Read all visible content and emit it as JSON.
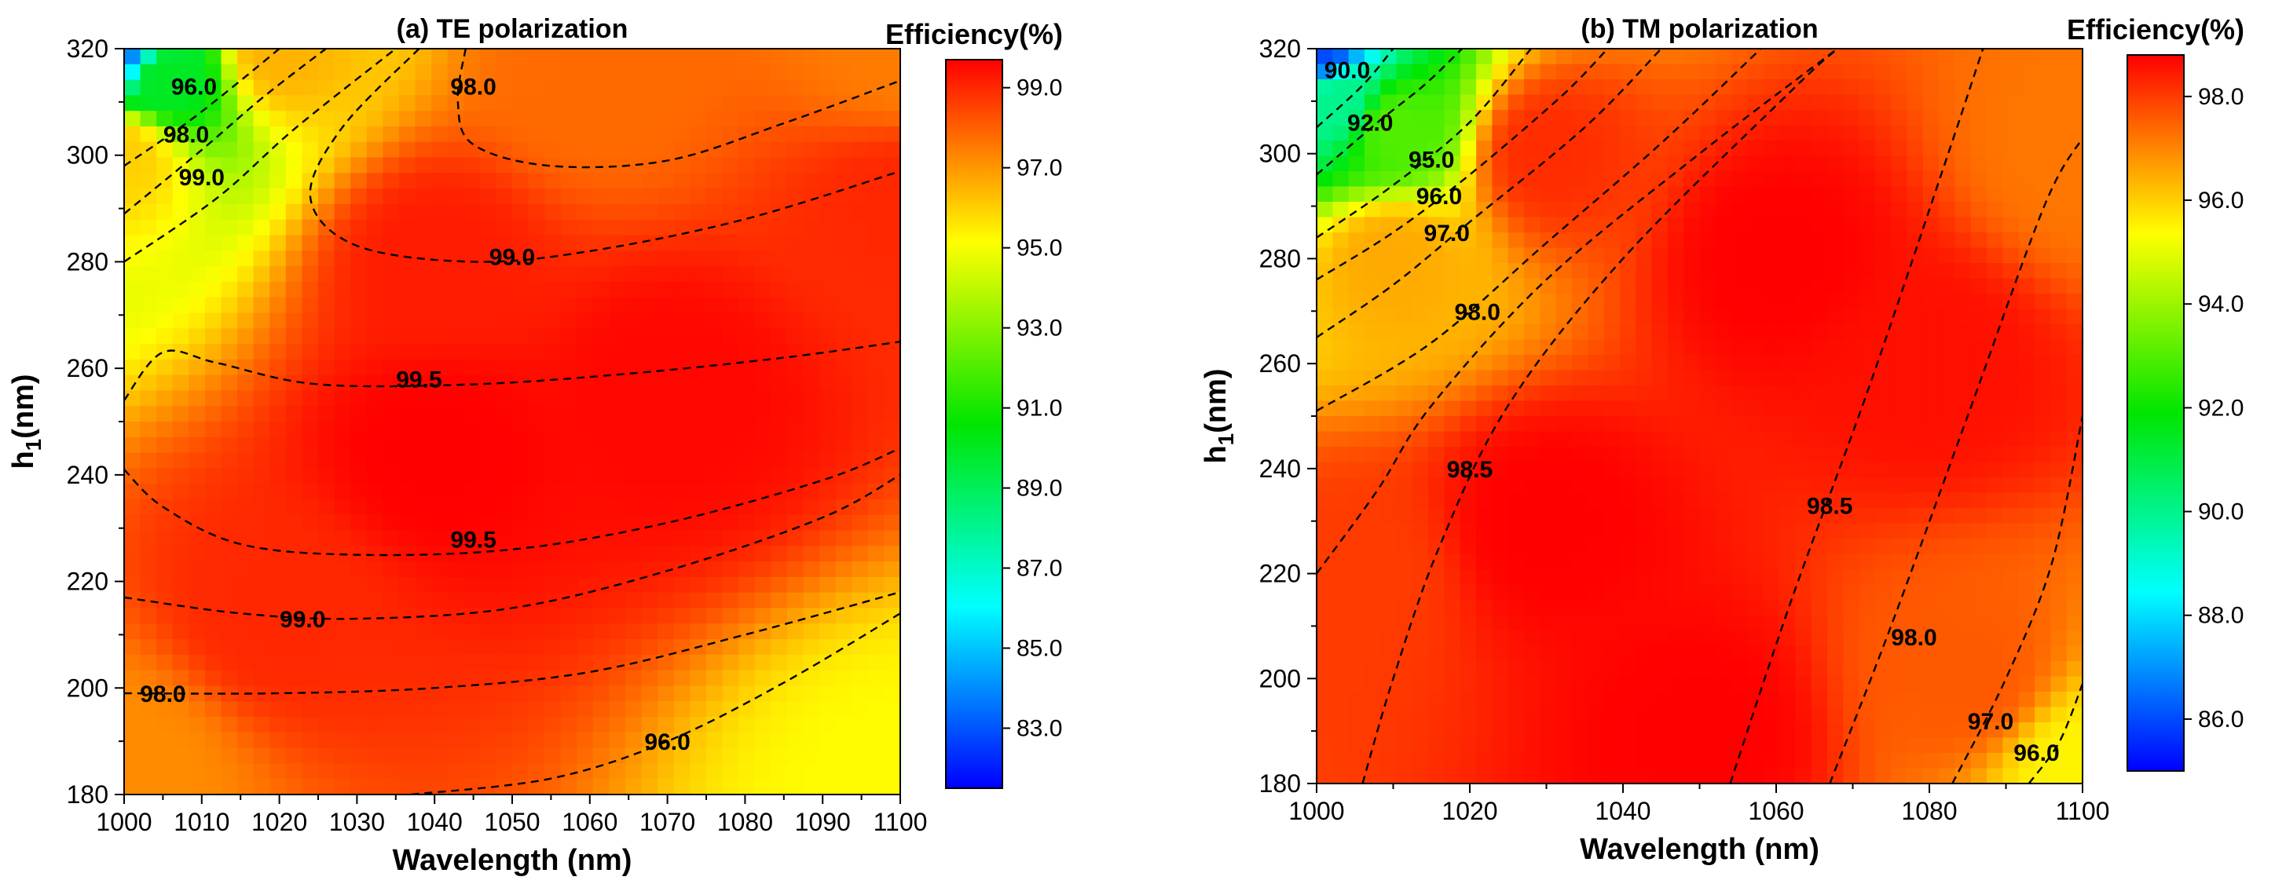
{
  "chart_data": [
    {
      "type": "heatmap",
      "title": "(a) TE polarization",
      "xlabel": "Wavelength (nm)",
      "ylabel": "h1(nm)",
      "ylabel_main": "h",
      "ylabel_sub": "1",
      "ylabel_tail": "(nm)",
      "xlim": [
        1000,
        1100
      ],
      "ylim": [
        180,
        320
      ],
      "x_ticks": [
        "1000",
        "1010",
        "1020",
        "1030",
        "1040",
        "1050",
        "1060",
        "1070",
        "1080",
        "1090",
        "1100"
      ],
      "y_ticks": [
        "180",
        "200",
        "220",
        "240",
        "260",
        "280",
        "300",
        "320"
      ],
      "colorbar": {
        "title": "Efficiency(%)",
        "range": [
          81.5,
          99.7
        ],
        "ticks": [
          "83.0",
          "85.0",
          "87.0",
          "89.0",
          "91.0",
          "93.0",
          "95.0",
          "97.0",
          "99.0"
        ]
      },
      "field_anchors": [
        {
          "x": 1000,
          "y": 320,
          "v": 84.0
        },
        {
          "x": 1005,
          "y": 315,
          "v": 90.0
        },
        {
          "x": 1000,
          "y": 300,
          "v": 96.0
        },
        {
          "x": 1020,
          "y": 320,
          "v": 96.5
        },
        {
          "x": 1060,
          "y": 315,
          "v": 97.8
        },
        {
          "x": 1040,
          "y": 280,
          "v": 99.2
        },
        {
          "x": 1040,
          "y": 245,
          "v": 99.7
        },
        {
          "x": 1070,
          "y": 255,
          "v": 99.6
        },
        {
          "x": 1020,
          "y": 215,
          "v": 99.0
        },
        {
          "x": 1000,
          "y": 185,
          "v": 97.2
        },
        {
          "x": 1100,
          "y": 180,
          "v": 95.2
        },
        {
          "x": 1100,
          "y": 290,
          "v": 99.0
        },
        {
          "x": 1100,
          "y": 320,
          "v": 97.5
        }
      ],
      "contours": [
        {
          "label": "96.0",
          "points": [
            [
              1000,
              298
            ],
            [
              1008,
              306
            ],
            [
              1015,
              314
            ],
            [
              1020,
              320
            ]
          ],
          "label_at": [
            1009,
            313
          ]
        },
        {
          "label": "98.0",
          "points": [
            [
              1000,
              289
            ],
            [
              1010,
              301
            ],
            [
              1018,
              311
            ],
            [
              1026,
              320
            ]
          ],
          "label_at": [
            1008,
            304
          ]
        },
        {
          "label": "99.0",
          "points": [
            [
              1000,
              280
            ],
            [
              1012,
              292
            ],
            [
              1022,
              305
            ],
            [
              1035,
              320
            ]
          ],
          "label_at": [
            1010,
            296
          ]
        },
        {
          "label": "98.0",
          "points": [
            [
              1044,
              320
            ],
            [
              1043,
              310
            ],
            [
              1045,
              302
            ],
            [
              1055,
              298
            ],
            [
              1070,
              299
            ],
            [
              1085,
              306
            ],
            [
              1100,
              314
            ]
          ],
          "label_at": [
            1045,
            313
          ]
        },
        {
          "label": "99.0",
          "points": [
            [
              1038,
              320
            ],
            [
              1028,
              305
            ],
            [
              1024,
              292
            ],
            [
              1030,
              283
            ],
            [
              1045,
              280
            ],
            [
              1060,
              282
            ],
            [
              1080,
              288
            ],
            [
              1100,
              297
            ]
          ],
          "label_at": [
            1050,
            281
          ]
        },
        {
          "label": "99.5",
          "points": [
            [
              1000,
              254
            ],
            [
              1005,
              263
            ],
            [
              1012,
              261
            ],
            [
              1025,
              257
            ],
            [
              1045,
              257
            ],
            [
              1065,
              259
            ],
            [
              1085,
              262
            ],
            [
              1100,
              265
            ]
          ],
          "label_at": [
            1038,
            258
          ]
        },
        {
          "label": "99.5",
          "points": [
            [
              1000,
              241
            ],
            [
              1005,
              234
            ],
            [
              1015,
              227
            ],
            [
              1030,
              225
            ],
            [
              1050,
              226
            ],
            [
              1070,
              231
            ],
            [
              1090,
              239
            ],
            [
              1100,
              245
            ]
          ],
          "label_at": [
            1045,
            228
          ]
        },
        {
          "label": "99.0",
          "points": [
            [
              1000,
              217
            ],
            [
              1015,
              214
            ],
            [
              1030,
              213
            ],
            [
              1050,
              215
            ],
            [
              1070,
              222
            ],
            [
              1090,
              232
            ],
            [
              1100,
              240
            ]
          ],
          "label_at": [
            1023,
            213
          ]
        },
        {
          "label": "98.0",
          "points": [
            [
              1000,
              199
            ],
            [
              1020,
              199
            ],
            [
              1040,
              200
            ],
            [
              1060,
              203
            ],
            [
              1080,
              210
            ],
            [
              1100,
              218
            ]
          ],
          "label_at": [
            1005,
            199
          ]
        },
        {
          "label": "96.0",
          "points": [
            [
              1037,
              180
            ],
            [
              1055,
              183
            ],
            [
              1070,
              190
            ],
            [
              1085,
              201
            ],
            [
              1100,
              214
            ]
          ],
          "label_at": [
            1070,
            190
          ]
        }
      ]
    },
    {
      "type": "heatmap",
      "title": "(b) TM polarization",
      "xlabel": "Wavelength (nm)",
      "ylabel": "h1(nm)",
      "ylabel_main": "h",
      "ylabel_sub": "1",
      "ylabel_tail": "(nm)",
      "xlim": [
        1000,
        1100
      ],
      "ylim": [
        180,
        320
      ],
      "x_ticks": [
        "1000",
        "1020",
        "1040",
        "1060",
        "1080",
        "1100"
      ],
      "y_ticks": [
        "180",
        "200",
        "220",
        "240",
        "260",
        "280",
        "300",
        "320"
      ],
      "colorbar": {
        "title": "Efficiency(%)",
        "range": [
          85.0,
          98.8
        ],
        "ticks": [
          "86.0",
          "88.0",
          "90.0",
          "92.0",
          "94.0",
          "96.0",
          "98.0"
        ]
      },
      "field_anchors": [
        {
          "x": 1000,
          "y": 320,
          "v": 86.0
        },
        {
          "x": 1003,
          "y": 310,
          "v": 90.0
        },
        {
          "x": 1010,
          "y": 305,
          "v": 93.0
        },
        {
          "x": 1010,
          "y": 280,
          "v": 96.5
        },
        {
          "x": 1030,
          "y": 300,
          "v": 98.2
        },
        {
          "x": 1005,
          "y": 220,
          "v": 98.0
        },
        {
          "x": 1030,
          "y": 230,
          "v": 98.8
        },
        {
          "x": 1060,
          "y": 280,
          "v": 98.8
        },
        {
          "x": 1050,
          "y": 190,
          "v": 98.8
        },
        {
          "x": 1080,
          "y": 260,
          "v": 98.6
        },
        {
          "x": 1085,
          "y": 200,
          "v": 97.6
        },
        {
          "x": 1100,
          "y": 182,
          "v": 95.5
        },
        {
          "x": 1100,
          "y": 300,
          "v": 97.2
        }
      ],
      "contours": [
        {
          "label": "90.0",
          "points": [
            [
              1000,
              305
            ],
            [
              1006,
              313
            ],
            [
              1010,
              320
            ]
          ],
          "label_at": [
            1004,
            316
          ]
        },
        {
          "label": "92.0",
          "points": [
            [
              1000,
              296
            ],
            [
              1008,
              306
            ],
            [
              1014,
              313
            ],
            [
              1019,
              320
            ]
          ],
          "label_at": [
            1007,
            306
          ]
        },
        {
          "label": "95.0",
          "points": [
            [
              1000,
              284
            ],
            [
              1010,
              294
            ],
            [
              1020,
              306
            ],
            [
              1028,
              320
            ]
          ],
          "label_at": [
            1015,
            299
          ]
        },
        {
          "label": "96.0",
          "points": [
            [
              1000,
              276
            ],
            [
              1010,
              285
            ],
            [
              1020,
              296
            ],
            [
              1032,
              311
            ],
            [
              1038,
              320
            ]
          ],
          "label_at": [
            1016,
            292
          ]
        },
        {
          "label": "97.0",
          "points": [
            [
              1000,
              265
            ],
            [
              1010,
              275
            ],
            [
              1020,
              287
            ],
            [
              1035,
              305
            ],
            [
              1045,
              320
            ]
          ],
          "label_at": [
            1017,
            285
          ]
        },
        {
          "label": "98.0",
          "points": [
            [
              1000,
              251
            ],
            [
              1015,
              264
            ],
            [
              1030,
              283
            ],
            [
              1045,
              302
            ],
            [
              1058,
              320
            ]
          ],
          "label_at": [
            1021,
            270
          ]
        },
        {
          "label": "98.5",
          "points": [
            [
              1000,
              220
            ],
            [
              1008,
              236
            ],
            [
              1015,
              252
            ],
            [
              1030,
              276
            ],
            [
              1050,
              300
            ],
            [
              1068,
              320
            ]
          ],
          "label_at": [
            1020,
            240
          ]
        },
        {
          "label": "98.5",
          "points": [
            [
              1006,
              180
            ],
            [
              1010,
              200
            ],
            [
              1016,
              225
            ],
            [
              1025,
              252
            ],
            [
              1040,
              280
            ],
            [
              1062,
              312
            ],
            [
              1068,
              320
            ]
          ],
          "label_at": [
            1020,
            240
          ]
        },
        {
          "label": "98.5",
          "points": [
            [
              1054,
              180
            ],
            [
              1062,
              215
            ],
            [
              1072,
              255
            ],
            [
              1082,
              298
            ],
            [
              1087,
              320
            ]
          ],
          "label_at": [
            1067,
            233
          ]
        },
        {
          "label": "98.0",
          "points": [
            [
              1067,
              180
            ],
            [
              1075,
              210
            ],
            [
              1085,
              250
            ],
            [
              1095,
              290
            ],
            [
              1100,
              303
            ]
          ],
          "label_at": [
            1078,
            208
          ]
        },
        {
          "label": "97.0",
          "points": [
            [
              1083,
              180
            ],
            [
              1090,
              200
            ],
            [
              1096,
              222
            ],
            [
              1100,
              250
            ]
          ],
          "label_at": [
            1088,
            192
          ]
        },
        {
          "label": "96.0",
          "points": [
            [
              1093,
              180
            ],
            [
              1097,
              188
            ],
            [
              1100,
              199
            ]
          ],
          "label_at": [
            1094,
            186
          ]
        }
      ]
    }
  ]
}
